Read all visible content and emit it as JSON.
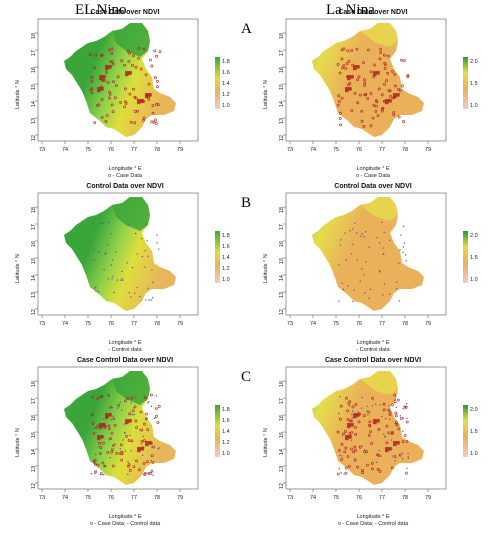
{
  "columns": [
    "EL Nino",
    "La Nina"
  ],
  "rows": [
    "A",
    "B",
    "C"
  ],
  "axes": {
    "x_label": "Longitude ° E",
    "y_label": "Latitude ° N",
    "x_ticks": [
      "73",
      "74",
      "75",
      "76",
      "77",
      "78",
      "79"
    ],
    "y_ticks": [
      "12",
      "13",
      "14",
      "15",
      "16",
      "17",
      "18"
    ]
  },
  "panels": [
    {
      "title": "Case Data over NDVI",
      "subtitle": "o - Case Data",
      "scale": "elnino",
      "legend": [
        "1.8",
        "1.6",
        "1.4",
        "1.2",
        "1.0"
      ],
      "points": "case"
    },
    {
      "title": "Case Data over NDVI",
      "subtitle": "o - Case Data",
      "scale": "lanina",
      "legend": [
        "2.0",
        "1.5",
        "1.0"
      ],
      "points": "case"
    },
    {
      "title": "Control Data over NDVI",
      "subtitle": "- Control data",
      "scale": "elnino",
      "legend": [
        "1.8",
        "1.6",
        "1.4",
        "1.2",
        "1.0"
      ],
      "points": "control"
    },
    {
      "title": "Control Data over NDVI",
      "subtitle": "- Control data",
      "scale": "lanina",
      "legend": [
        "2.0",
        "1.5",
        "1.0"
      ],
      "points": "control"
    },
    {
      "title": "Case Control Data over NDVI",
      "subtitle": "o - Case Data;  - Control data",
      "scale": "elnino",
      "legend": [
        "1.8",
        "1.6",
        "1.4",
        "1.2",
        "1.0"
      ],
      "points": "both"
    },
    {
      "title": "Case Control Data over NDVI",
      "subtitle": "o - Case Data;  - Control data",
      "scale": "lanina",
      "legend": [
        "2.0",
        "1.5",
        "1.0"
      ],
      "points": "both"
    }
  ],
  "colors": {
    "elnino_green": "#3aa63a",
    "elnino_light": "#8fd14a",
    "elnino_yellow": "#dede3c",
    "elnino_orange": "#e9b45a",
    "lanina_base": "#eab05a",
    "lanina_yellow": "#e6dc4a",
    "lanina_green": "#8ecf4a",
    "case_point": "#b0231f",
    "control_point": "#6a4a8c"
  }
}
